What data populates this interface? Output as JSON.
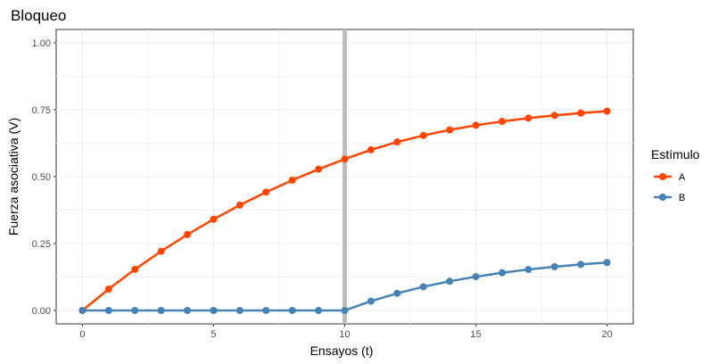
{
  "chart_data": {
    "type": "line",
    "title": "Bloqueo",
    "xlabel": "Ensayos (t)",
    "ylabel": "Fuerza asociativa (V)",
    "xlim": [
      -1,
      21
    ],
    "ylim": [
      -0.05,
      1.05
    ],
    "xticks": [
      0,
      5,
      10,
      15,
      20
    ],
    "xtick_labels": [
      "0",
      "5",
      "10",
      "15",
      "20"
    ],
    "yticks": [
      0,
      0.25,
      0.5,
      0.75,
      1
    ],
    "ytick_labels": [
      "0.00",
      "0.25",
      "0.50",
      "0.75",
      "1.00"
    ],
    "grid": true,
    "vline": 10,
    "legend_title": "Estímulo",
    "legend_position": "right",
    "x": [
      0,
      1,
      2,
      3,
      4,
      5,
      6,
      7,
      8,
      9,
      10,
      11,
      12,
      13,
      14,
      15,
      16,
      17,
      18,
      19,
      20
    ],
    "series": [
      {
        "name": "A",
        "color": "#FF4500",
        "values": [
          0,
          0.08,
          0.1536,
          0.2213,
          0.2836,
          0.3409,
          0.3936,
          0.4422,
          0.4868,
          0.5278,
          0.5656,
          0.6003,
          0.6295,
          0.654,
          0.6746,
          0.6919,
          0.7064,
          0.7186,
          0.7289,
          0.7375,
          0.7447
        ]
      },
      {
        "name": "B",
        "color": "#4682B4",
        "values": [
          0,
          0,
          0,
          0,
          0,
          0,
          0,
          0,
          0,
          0,
          0,
          0.0348,
          0.064,
          0.0885,
          0.1091,
          0.1264,
          0.1409,
          0.1531,
          0.1634,
          0.172,
          0.1792
        ]
      }
    ]
  }
}
